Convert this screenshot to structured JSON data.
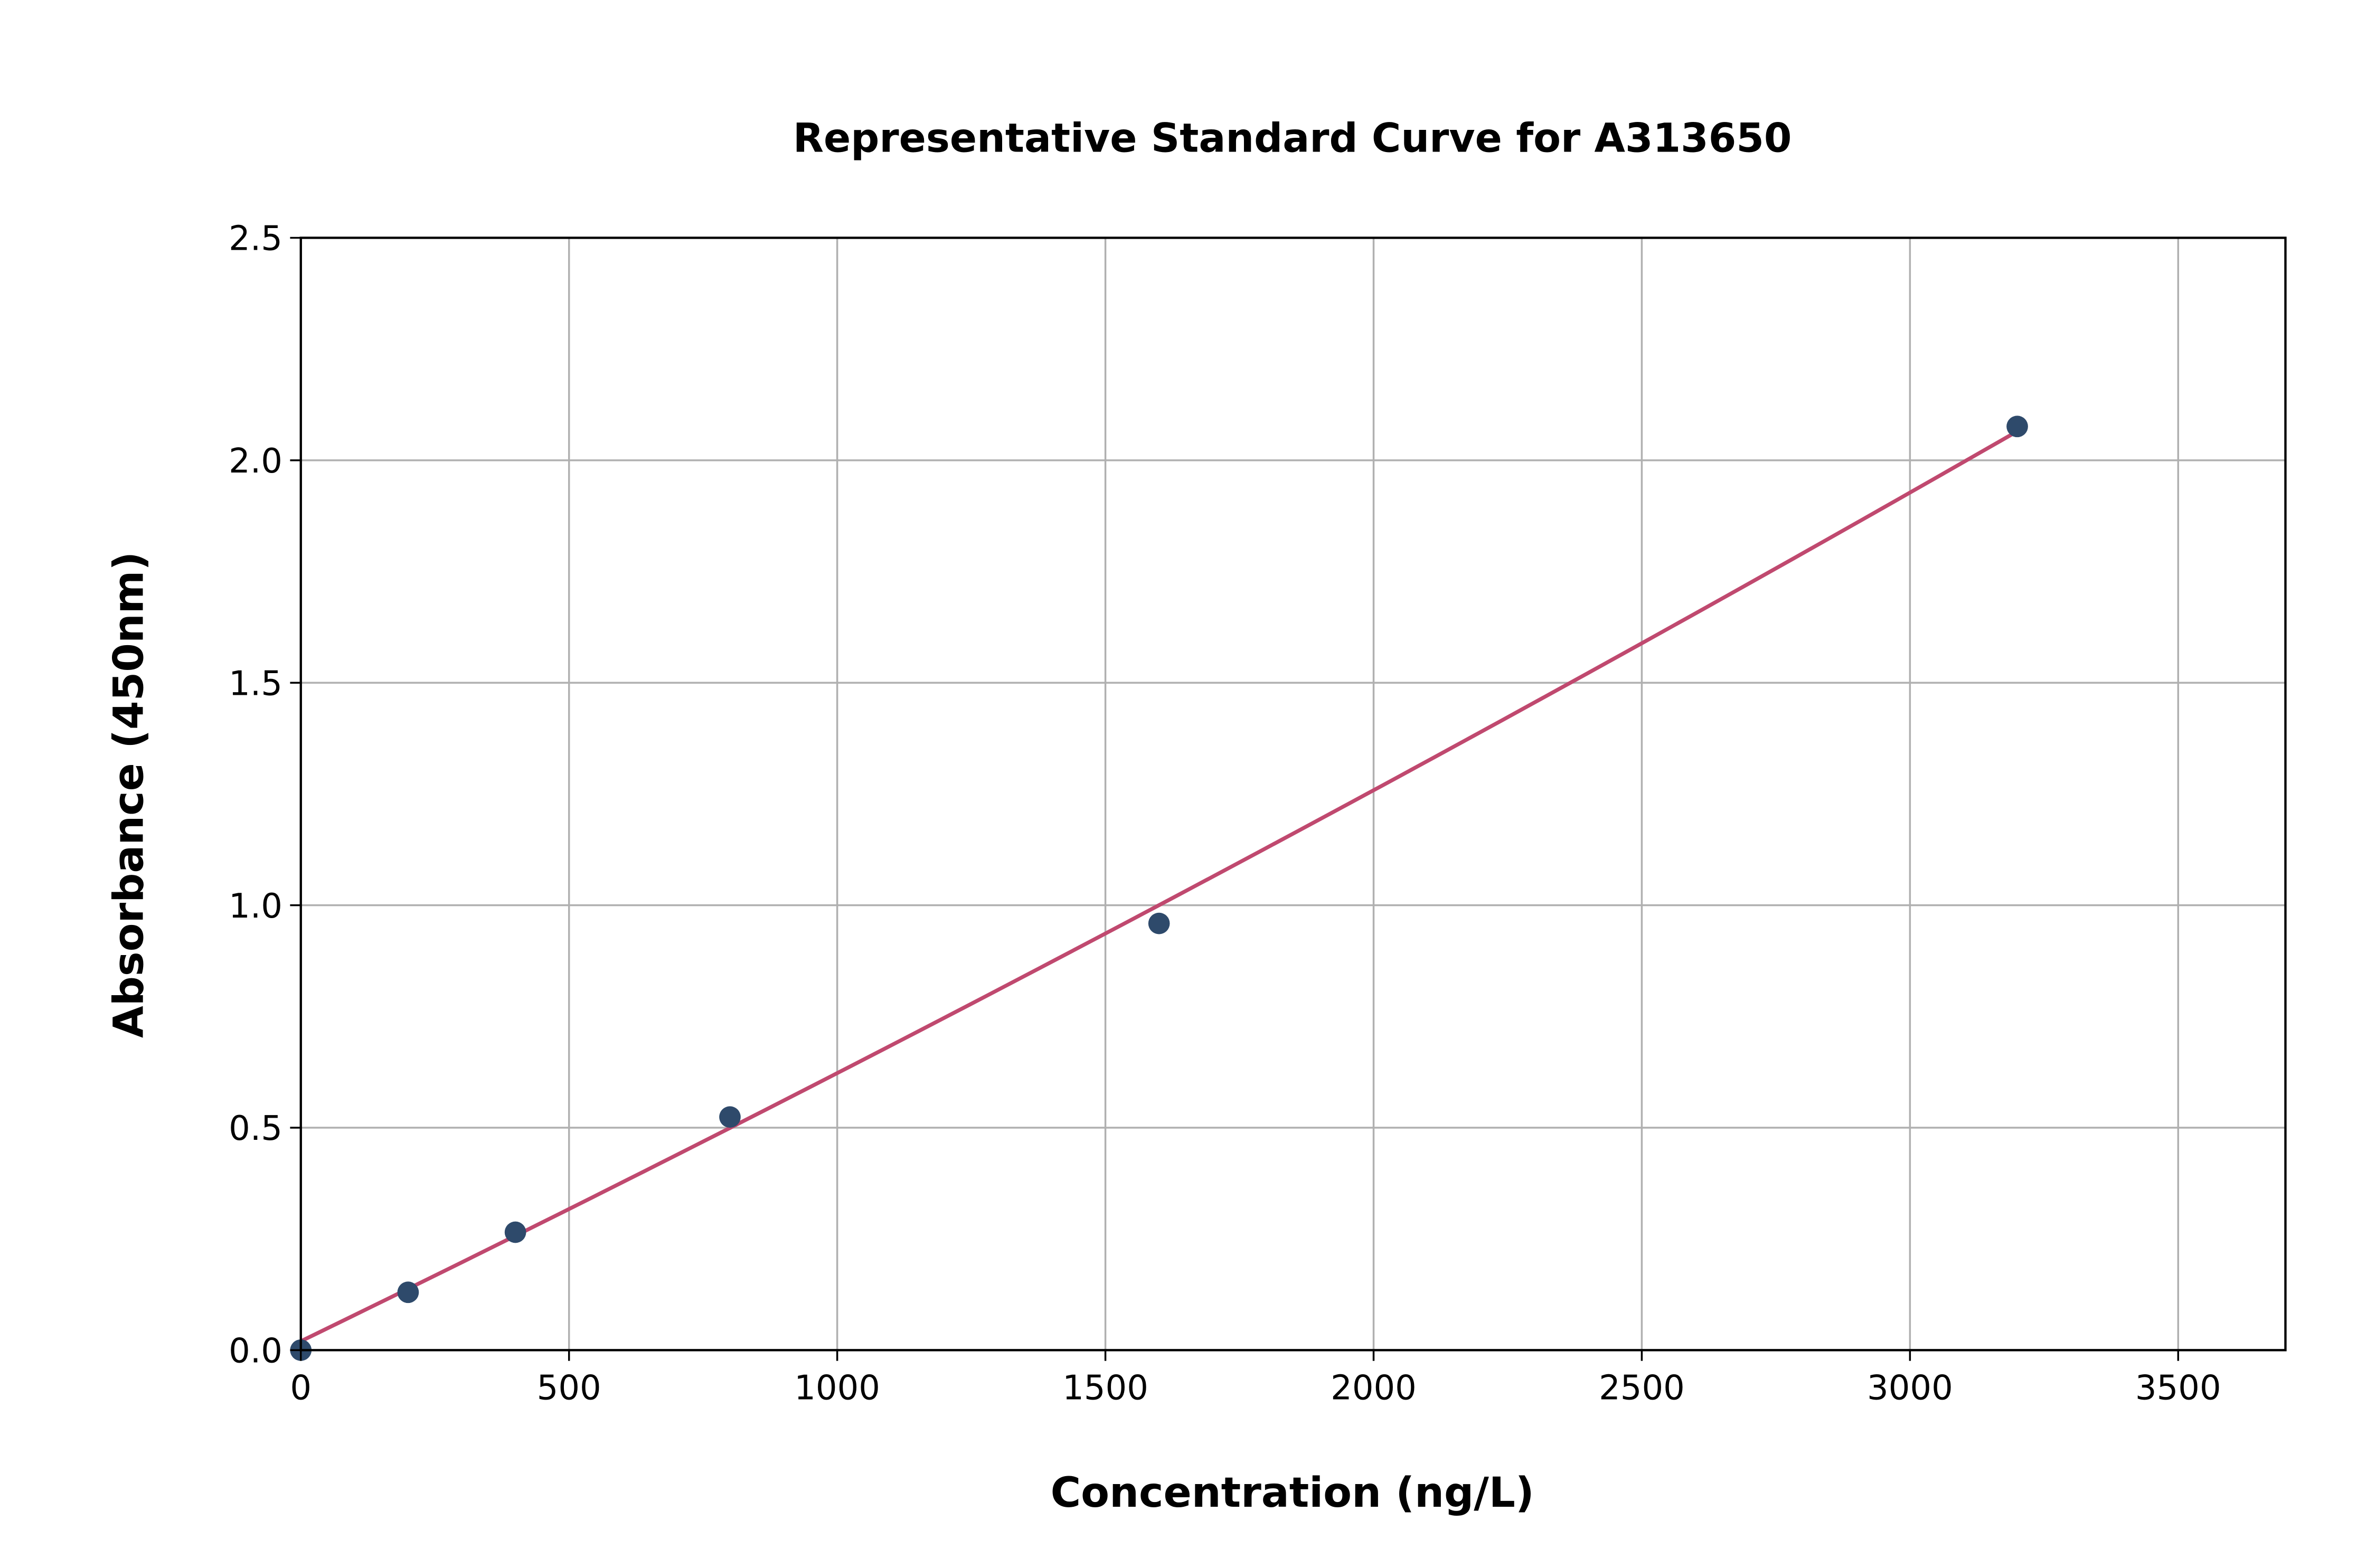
{
  "chart_data": {
    "type": "scatter",
    "title": "Representative Standard Curve for A313650",
    "xlabel": "Concentration (ng/L)",
    "ylabel": "Absorbance (450nm)",
    "xlim": [
      0,
      3700
    ],
    "ylim": [
      0,
      2.5
    ],
    "xticks": [
      0,
      500,
      1000,
      1500,
      2000,
      2500,
      3000,
      3500
    ],
    "xtick_labels": [
      "0",
      "500",
      "1000",
      "1500",
      "2000",
      "2500",
      "3000",
      "3500"
    ],
    "yticks": [
      0,
      0.5,
      1.0,
      1.5,
      2.0,
      2.5
    ],
    "ytick_labels": [
      "0.0",
      "0.5",
      "1.0",
      "1.5",
      "2.0",
      "2.5"
    ],
    "grid": true,
    "points": {
      "x": [
        0,
        200,
        400,
        800,
        1600,
        3200
      ],
      "y": [
        0.0,
        0.13,
        0.265,
        0.524,
        0.959,
        2.076
      ],
      "color": "#2e4a6b"
    },
    "fit": {
      "type": "quadratic",
      "x_range": [
        0,
        3200
      ],
      "coefficients": [
        0.02,
        0.000586,
        1.66e-08
      ],
      "color": "#c0496f"
    }
  }
}
